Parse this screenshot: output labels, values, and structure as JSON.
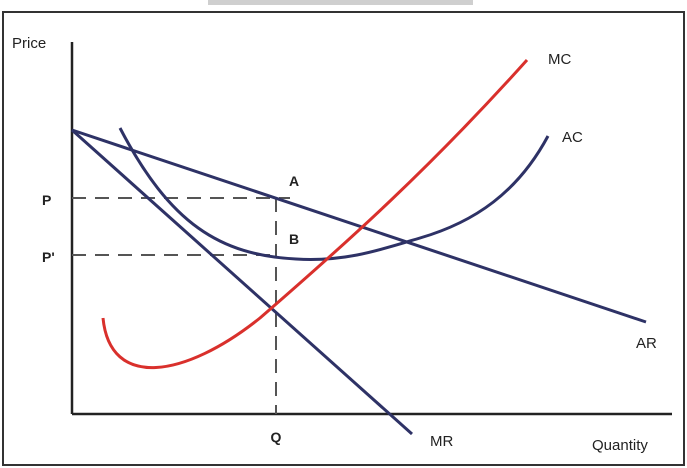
{
  "diagram": {
    "axes": {
      "y_label": "Price",
      "x_label": "Quantity"
    },
    "price_levels": {
      "upper": "P",
      "lower": "P'"
    },
    "quantity_label": "Q",
    "points": {
      "a": "A",
      "b": "B"
    },
    "curves": {
      "mc": "MC",
      "ac": "AC",
      "ar": "AR",
      "mr": "MR"
    },
    "colors": {
      "mc": "#d9302c",
      "ac": "#2e3266",
      "ar": "#2e3266",
      "mr": "#2e3266",
      "axes": "#222222",
      "guide": "#555555",
      "frame": "#333333"
    }
  }
}
